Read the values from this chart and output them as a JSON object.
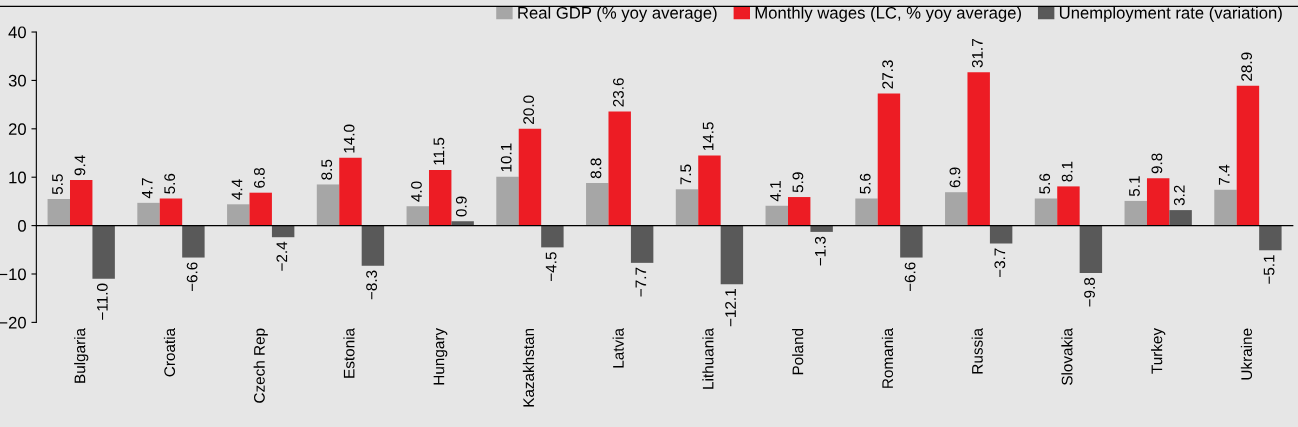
{
  "chart_data": {
    "type": "bar",
    "categories": [
      "Bulgaria",
      "Croatia",
      "Czech Rep",
      "Estonia",
      "Hungary",
      "Kazakhstan",
      "Latvia",
      "Lithuania",
      "Poland",
      "Romania",
      "Russia",
      "Slovakia",
      "Turkey",
      "Ukraine"
    ],
    "series": [
      {
        "name": "Real GDP (% yoy average)",
        "color": "#a6a6a6",
        "values": [
          5.5,
          4.7,
          4.4,
          8.5,
          4.0,
          10.1,
          8.8,
          7.5,
          4.1,
          5.6,
          6.9,
          5.6,
          5.1,
          7.4
        ],
        "value_labels": [
          "5.5",
          "4.7",
          "4.4",
          "8.5",
          "4.0",
          "10.1",
          "8.8",
          "7.5",
          "4.1",
          "5.6",
          "6.9",
          "5.6",
          "5.1",
          "7.4"
        ]
      },
      {
        "name": "Monthly wages (LC, % yoy average)",
        "color": "#ed1c24",
        "values": [
          9.4,
          5.6,
          6.8,
          14.0,
          11.5,
          20.0,
          23.6,
          14.5,
          5.9,
          27.3,
          31.7,
          8.1,
          9.8,
          28.9
        ],
        "value_labels": [
          "9.4",
          "5.6",
          "6.8",
          "14.0",
          "11.5",
          "20.0",
          "23.6",
          "14.5",
          "5.9",
          "27.3",
          "31.7",
          "8.1",
          "9.8",
          "28.9"
        ]
      },
      {
        "name": "Unemployment rate (variation)",
        "color": "#595959",
        "values": [
          -11.0,
          -6.6,
          -2.4,
          -8.3,
          0.9,
          -4.5,
          -7.7,
          -12.1,
          -1.3,
          -6.6,
          -3.7,
          -9.8,
          3.2,
          -5.1
        ],
        "value_labels": [
          "−11.0",
          "−6.6",
          "−2.4",
          "−8.3",
          "0.9",
          "−4.5",
          "−7.7",
          "−12.1",
          "−1.3",
          "−6.6",
          "−3.7",
          "−9.8",
          "3.2",
          "−5.1"
        ]
      }
    ],
    "ylim": [
      -20,
      40
    ],
    "yticks": [
      -20,
      -10,
      0,
      10,
      20,
      30,
      40
    ],
    "legend": "top right"
  }
}
